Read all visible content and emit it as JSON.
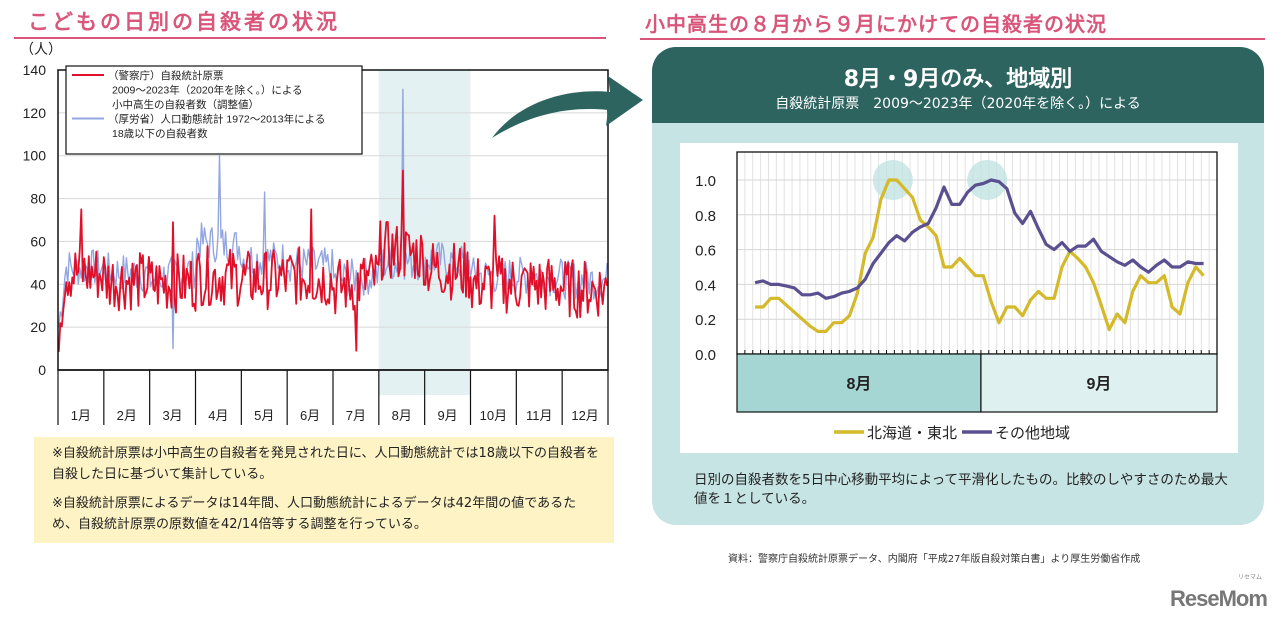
{
  "left_section": {
    "title": "こどもの日別の自殺者の状況",
    "notes": [
      "※自殺統計原票は小中高生の自殺者を発見された日に、人口動態統計では18歳以下の自殺者を自殺した日に基づいて集計している。",
      "※自殺統計原票によるデータは14年間、人口動態統計によるデータは42年間の値であるため、自殺統計原票の原数値を42/14倍等する調整を行っている。"
    ]
  },
  "right_section": {
    "title": "小中高生の８月から９月にかけての自殺者の状況",
    "panel_title": "8月・9月のみ、地域別",
    "panel_subtitle": "自殺統計原票　2009～2023年（2020年を除く。）による",
    "panel_note": "日別の自殺者数を5日中心移動平均によって平滑化したもの。比較のしやすさのため最大値を１としている。"
  },
  "source": "資料：警察庁自殺統計原票データ、内閣府「平成27年版自殺対策白書」より厚生労働省作成",
  "logo": "ReseMom",
  "logo_ruby": "リセマム",
  "chart_data": [
    {
      "type": "line",
      "title": "こどもの日別の自殺者の状況",
      "ylabel": "（人）",
      "ylim": [
        0,
        140
      ],
      "yticks": [
        "0",
        "20",
        "40",
        "60",
        "80",
        "100",
        "120",
        "140"
      ],
      "categories": [
        "1月",
        "2月",
        "3月",
        "4月",
        "5月",
        "6月",
        "7月",
        "8月",
        "9月",
        "10月",
        "11月",
        "12月"
      ],
      "highlight": [
        "8月",
        "9月"
      ],
      "grid": true,
      "legend_position": "top-left",
      "series": [
        {
          "name": "（警察庁）自殺統計原票 2009～2023年（2020年を除く。）による 小中高生の自殺者数（調整値）",
          "legend_lines": [
            "（警察庁）自殺統計原票",
            "2009～2023年（2020年を除く。）による",
            "小中高生の自殺者数（調整値）"
          ],
          "color": "#e0102a",
          "monthly_levels": [
            46,
            42,
            40,
            44,
            42,
            44,
            38,
            56,
            48,
            40,
            40,
            38
          ],
          "peaks": [
            [
              1,
              75
            ],
            [
              3,
              69
            ],
            [
              6,
              75
            ],
            [
              7,
              9
            ],
            [
              8,
              93
            ],
            [
              10,
              72
            ]
          ]
        },
        {
          "name": "（厚労省）人口動態統計 1972～2013年による 18歳以下の自殺者数",
          "legend_lines": [
            "（厚労省）人口動態統計 1972～2013年による",
            "18歳以下の自殺者数"
          ],
          "color": "#93a6e0",
          "monthly_levels": [
            48,
            46,
            42,
            60,
            52,
            50,
            42,
            50,
            52,
            44,
            44,
            42
          ],
          "peaks": [
            [
              3,
              10
            ],
            [
              4,
              100
            ],
            [
              5,
              83
            ],
            [
              8,
              131
            ]
          ]
        }
      ]
    },
    {
      "type": "line",
      "title": "8月・9月のみ、地域別",
      "ylim": [
        0,
        1.0
      ],
      "yticks": [
        "0.0",
        "0.2",
        "0.4",
        "0.6",
        "0.8",
        "1.0"
      ],
      "xlabels": [
        "8月",
        "9月"
      ],
      "grid": true,
      "legend_position": "bottom",
      "series": [
        {
          "name": "北海道・東北",
          "color": "#d4b92a",
          "values": [
            0.27,
            0.27,
            0.32,
            0.32,
            0.28,
            0.24,
            0.2,
            0.16,
            0.13,
            0.13,
            0.18,
            0.18,
            0.22,
            0.35,
            0.58,
            0.67,
            0.89,
            1.0,
            1.0,
            0.95,
            0.9,
            0.77,
            0.73,
            0.68,
            0.5,
            0.5,
            0.55,
            0.5,
            0.45,
            0.45,
            0.3,
            0.18,
            0.27,
            0.27,
            0.22,
            0.31,
            0.36,
            0.32,
            0.32,
            0.5,
            0.59,
            0.55,
            0.5,
            0.41,
            0.28,
            0.14,
            0.23,
            0.18,
            0.36,
            0.45,
            0.41,
            0.41,
            0.45,
            0.27,
            0.23,
            0.41,
            0.5,
            0.45
          ]
        },
        {
          "name": "その他地域",
          "color": "#5a5090",
          "values": [
            0.41,
            0.42,
            0.4,
            0.4,
            0.39,
            0.38,
            0.34,
            0.34,
            0.35,
            0.32,
            0.33,
            0.35,
            0.36,
            0.38,
            0.43,
            0.52,
            0.58,
            0.64,
            0.68,
            0.65,
            0.7,
            0.73,
            0.75,
            0.84,
            0.96,
            0.86,
            0.86,
            0.93,
            0.97,
            0.98,
            1.0,
            0.99,
            0.95,
            0.81,
            0.75,
            0.82,
            0.72,
            0.63,
            0.6,
            0.64,
            0.59,
            0.62,
            0.62,
            0.66,
            0.59,
            0.56,
            0.53,
            0.51,
            0.54,
            0.5,
            0.47,
            0.51,
            0.54,
            0.5,
            0.5,
            0.53,
            0.52,
            0.52
          ]
        }
      ]
    }
  ]
}
